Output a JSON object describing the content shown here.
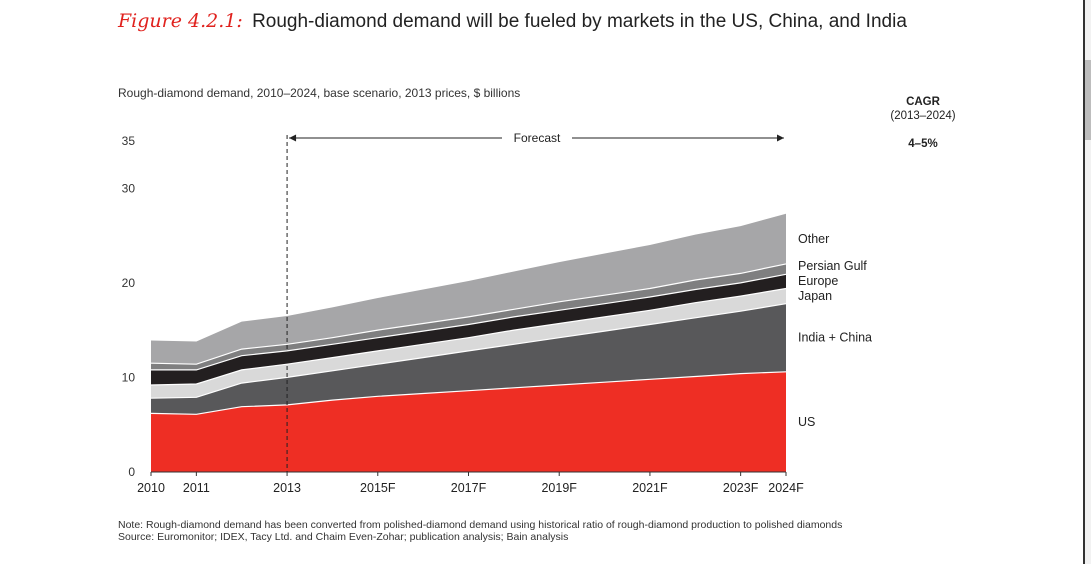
{
  "figure": {
    "label": "Figure 4.2.1:",
    "title": "Rough-diamond demand will be fueled by markets in the US, China, and India"
  },
  "subtitle": "Rough-diamond demand, 2010–2024, base scenario, 2013 prices, $ billions",
  "cagr": {
    "title": "CAGR",
    "range": "(2013–2024)",
    "value": "4–5%"
  },
  "forecast_label": "Forecast",
  "note": "Note:  Rough-diamond demand has been converted from polished-diamond demand using historical ratio of rough-diamond production to polished diamonds",
  "source": "Source:  Euromonitor; IDEX, Tacy Ltd. and Chaim Even-Zohar; publication analysis; Bain analysis",
  "colors": {
    "us": "#ee2e24",
    "india_china": "#58585a",
    "japan": "#d9d9d9",
    "europe": "#231f20",
    "persian_gulf": "#7f7f80",
    "other": "#a6a6a8",
    "separator": "#ffffff",
    "axis": "#333333"
  },
  "chart_data": {
    "type": "area",
    "stacked": true,
    "title": "Rough-diamond demand, 2010–2024, base scenario, 2013 prices, $ billions",
    "xlabel": "",
    "ylabel": "",
    "x": [
      2010,
      2011,
      2012,
      2013,
      2014,
      2015,
      2016,
      2017,
      2018,
      2019,
      2020,
      2021,
      2022,
      2023,
      2024
    ],
    "x_tick_values": [
      2010,
      2011,
      2013,
      2015,
      2017,
      2019,
      2021,
      2023,
      2024
    ],
    "x_tick_labels": [
      "2010",
      "2011",
      "2013",
      "2015F",
      "2017F",
      "2019F",
      "2021F",
      "2023F",
      "2024F"
    ],
    "ylim": [
      0,
      35
    ],
    "y_ticks": [
      0,
      10,
      20,
      30,
      35
    ],
    "forecast_start": 2013,
    "series": [
      {
        "name": "US",
        "key": "us",
        "values": [
          6.2,
          6.1,
          6.9,
          7.1,
          7.6,
          8.0,
          8.3,
          8.6,
          8.9,
          9.2,
          9.5,
          9.8,
          10.1,
          10.4,
          10.6
        ]
      },
      {
        "name": "India + China",
        "key": "india_china",
        "values": [
          1.6,
          1.8,
          2.5,
          2.9,
          3.1,
          3.4,
          3.8,
          4.2,
          4.6,
          5.0,
          5.4,
          5.8,
          6.2,
          6.6,
          7.2
        ]
      },
      {
        "name": "Japan",
        "key": "japan",
        "values": [
          1.4,
          1.4,
          1.4,
          1.4,
          1.4,
          1.4,
          1.4,
          1.4,
          1.5,
          1.5,
          1.5,
          1.5,
          1.6,
          1.6,
          1.6
        ]
      },
      {
        "name": "Europe",
        "key": "europe",
        "values": [
          1.6,
          1.5,
          1.5,
          1.4,
          1.4,
          1.4,
          1.4,
          1.4,
          1.4,
          1.4,
          1.4,
          1.4,
          1.4,
          1.4,
          1.5
        ]
      },
      {
        "name": "Persian Gulf",
        "key": "persian_gulf",
        "values": [
          0.7,
          0.6,
          0.7,
          0.7,
          0.7,
          0.8,
          0.8,
          0.8,
          0.8,
          0.9,
          0.9,
          0.9,
          1.0,
          1.0,
          1.1
        ]
      },
      {
        "name": "Other",
        "key": "other",
        "values": [
          2.4,
          2.4,
          2.9,
          3.0,
          3.2,
          3.4,
          3.6,
          3.8,
          4.0,
          4.2,
          4.4,
          4.6,
          4.8,
          5.0,
          5.3
        ]
      }
    ]
  }
}
